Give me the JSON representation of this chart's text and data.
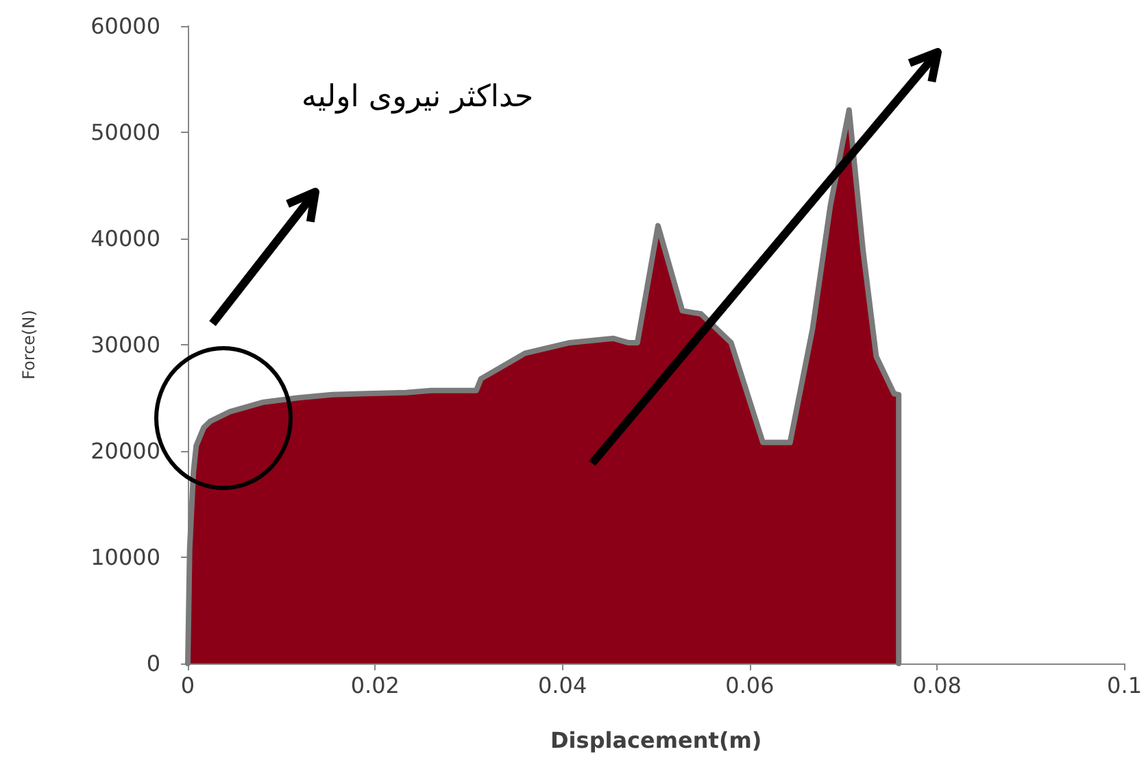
{
  "chart_data": {
    "type": "area",
    "xlabel": "Displacement(m)",
    "ylabel": "Force(N)",
    "annotations": [
      "حداکثر نیروی اولیه"
    ],
    "xlim": [
      0,
      0.1
    ],
    "xticks": [
      0,
      0.02,
      0.04,
      0.06,
      0.08,
      0.1
    ],
    "ylim": [
      0,
      60000
    ],
    "yticks": [
      0,
      10000,
      20000,
      30000,
      40000,
      50000,
      60000
    ],
    "grid": false,
    "series": [
      {
        "color": "#8b0016",
        "x": [
          0,
          0.0002,
          0.0006,
          0.0009,
          0.0017,
          0.0024,
          0.0045,
          0.0081,
          0.0117,
          0.0154,
          0.019,
          0.0233,
          0.026,
          0.0308,
          0.0313,
          0.036,
          0.0408,
          0.0454,
          0.047,
          0.048,
          0.0502,
          0.0528,
          0.0548,
          0.058,
          0.0614,
          0.0643,
          0.0667,
          0.0686,
          0.0706,
          0.0721,
          0.0735,
          0.0754,
          0.0759,
          0.0759
        ],
        "values": [
          0,
          10800,
          18000,
          20500,
          22200,
          22800,
          23700,
          24600,
          25000,
          25300,
          25400,
          25500,
          25700,
          25700,
          26800,
          29200,
          30200,
          30600,
          30200,
          30200,
          41200,
          33200,
          32900,
          30200,
          20800,
          20800,
          31500,
          43100,
          52100,
          38800,
          28900,
          25400,
          25300,
          0
        ]
      }
    ]
  }
}
